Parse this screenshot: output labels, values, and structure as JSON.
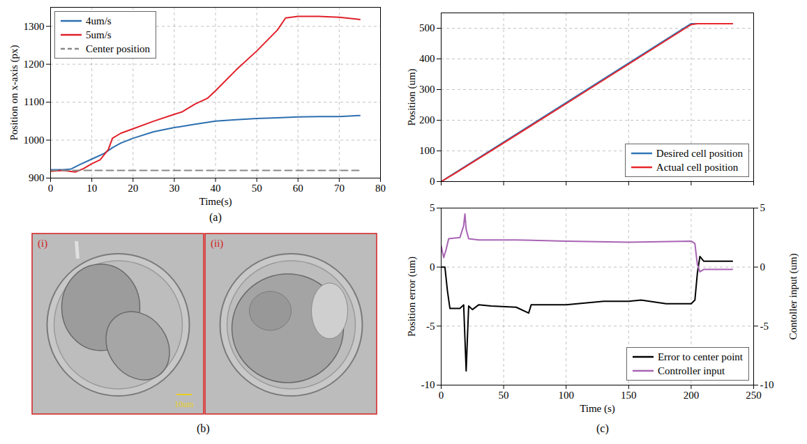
{
  "chart_data": [
    {
      "type": "line",
      "panel": "(a)",
      "xlabel": "Time(s)",
      "ylabel": "Position on x-axis (px)",
      "xlim": [
        0,
        80
      ],
      "xticks": [
        0,
        10,
        20,
        30,
        40,
        50,
        60,
        70,
        80
      ],
      "ylim": [
        900,
        1350
      ],
      "yticks": [
        900,
        1000,
        1100,
        1200,
        1300
      ],
      "grid": true,
      "legend": "upper left",
      "series": [
        {
          "name": "4um/s",
          "color": "#2c6fb0",
          "line_style": "solid",
          "x": [
            0,
            3,
            5,
            7,
            10,
            13,
            15,
            17,
            20,
            25,
            30,
            35,
            40,
            45,
            50,
            55,
            60,
            65,
            70,
            75
          ],
          "values": [
            922,
            922,
            924,
            935,
            950,
            965,
            980,
            992,
            1005,
            1022,
            1033,
            1042,
            1050,
            1054,
            1057,
            1059,
            1061,
            1062,
            1062,
            1065
          ]
        },
        {
          "name": "5um/s",
          "color": "#e0202a",
          "line_style": "solid",
          "x": [
            0,
            3,
            6,
            8,
            10,
            12,
            14,
            15,
            17,
            20,
            25,
            30,
            32,
            35,
            38,
            40,
            45,
            50,
            55,
            57,
            60,
            65,
            70,
            75
          ],
          "values": [
            918,
            920,
            916,
            925,
            938,
            948,
            975,
            1005,
            1018,
            1030,
            1050,
            1068,
            1075,
            1095,
            1110,
            1130,
            1185,
            1235,
            1290,
            1322,
            1326,
            1326,
            1324,
            1318
          ]
        },
        {
          "name": "Center position",
          "color": "#888888",
          "line_style": "dashed",
          "x": [
            0,
            75
          ],
          "values": [
            920,
            920
          ]
        }
      ]
    },
    {
      "type": "line",
      "panel": "(c)",
      "ylabel": "Position (um)",
      "xlim": [
        0,
        250
      ],
      "xticks": [
        0,
        50,
        100,
        150,
        200,
        250
      ],
      "ylim": [
        0,
        550
      ],
      "yticks": [
        0,
        100,
        200,
        300,
        400,
        500
      ],
      "grid": true,
      "legend": "lower right",
      "tick_labels": "y",
      "series": [
        {
          "name": "Desired cell position",
          "color": "#2e75b6",
          "line_style": "solid",
          "x": [
            0,
            200,
            233
          ],
          "values": [
            0,
            515,
            515
          ]
        },
        {
          "name": "Actual cell position",
          "color": "#e8262b",
          "line_style": "solid",
          "x": [
            0,
            10,
            50,
            100,
            150,
            200,
            205,
            233
          ],
          "values": [
            0,
            24,
            126,
            254,
            383,
            512,
            515,
            515
          ]
        }
      ]
    },
    {
      "type": "line",
      "panel": "(c)",
      "xlabel": "Time (s)",
      "ylabel": "Position error (um)",
      "y2label": "Contoller input (um)",
      "xlim": [
        0,
        250
      ],
      "xticks": [
        0,
        50,
        100,
        150,
        200,
        250
      ],
      "ylim": [
        -10,
        5
      ],
      "yticks": [
        -10,
        -5,
        0,
        5
      ],
      "y2lim": [
        -10,
        5
      ],
      "y2ticks": [
        -10,
        -5,
        0,
        5
      ],
      "grid": true,
      "legend": "lower right",
      "series": [
        {
          "name": "Error to center point",
          "color": "#000000",
          "line_style": "solid",
          "axis": "y",
          "x": [
            0,
            3,
            5,
            7,
            15,
            18,
            19,
            20,
            21,
            22,
            25,
            30,
            40,
            60,
            70,
            72,
            100,
            130,
            150,
            160,
            180,
            200,
            203,
            205,
            207,
            210,
            233
          ],
          "values": [
            0,
            0,
            -2,
            -3.5,
            -3.5,
            -3.2,
            -6,
            -8.8,
            -6,
            -3.3,
            -3.6,
            -3.2,
            -3.3,
            -3.4,
            -3.9,
            -3.2,
            -3.2,
            -2.9,
            -2.9,
            -2.8,
            -3.1,
            -3.1,
            -2.8,
            -0.5,
            0.9,
            0.5,
            0.5
          ]
        },
        {
          "name": "Controller input",
          "color": "#a864b4",
          "line_style": "solid",
          "axis": "y2",
          "x": [
            0,
            2,
            4,
            6,
            15,
            18,
            19,
            20,
            22,
            30,
            60,
            100,
            150,
            200,
            203,
            205,
            207,
            210,
            233
          ],
          "values": [
            1.8,
            0.8,
            1.5,
            2.4,
            2.5,
            3.5,
            4.5,
            3.2,
            2.4,
            2.3,
            2.3,
            2.2,
            2.1,
            2.2,
            2.0,
            0.2,
            -0.4,
            -0.2,
            -0.2
          ]
        }
      ]
    }
  ],
  "figure": {
    "panel_labels": [
      "(a)",
      "(b)",
      "(c)"
    ],
    "images": [
      {
        "label": "(i)",
        "scale_bar": "10um"
      },
      {
        "label": "(ii)"
      }
    ]
  }
}
